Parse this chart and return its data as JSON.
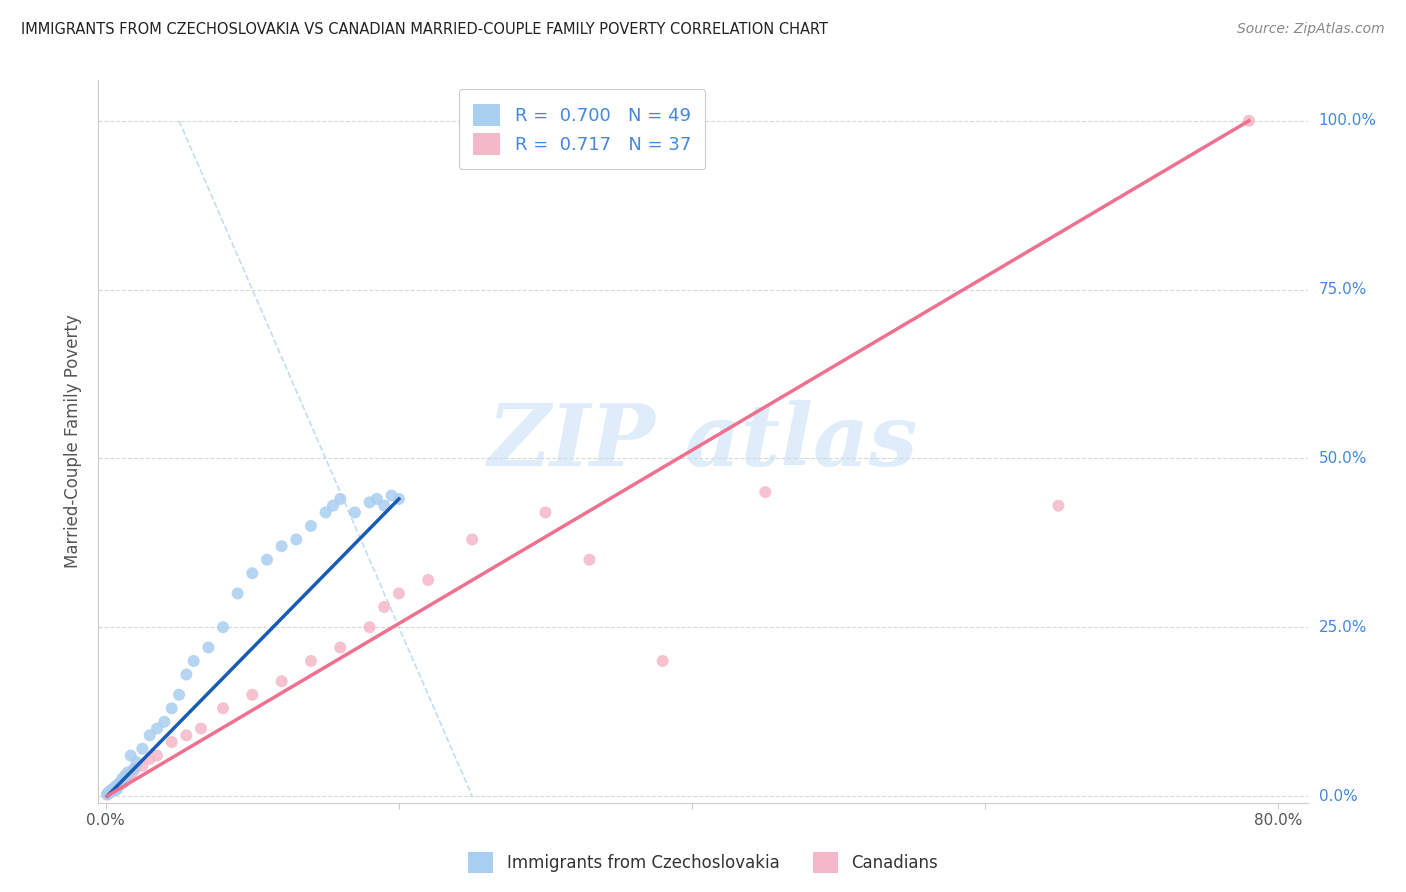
{
  "title": "IMMIGRANTS FROM CZECHOSLOVAKIA VS CANADIAN MARRIED-COUPLE FAMILY POVERTY CORRELATION CHART",
  "source": "Source: ZipAtlas.com",
  "ylabel": "Married-Couple Family Poverty",
  "x_ticks": [
    0.0,
    20.0,
    40.0,
    60.0,
    80.0
  ],
  "y_ticks": [
    0.0,
    25.0,
    50.0,
    75.0,
    100.0
  ],
  "x_tick_labels": [
    "0.0%",
    "",
    "",
    "",
    "80.0%"
  ],
  "y_tick_labels": [
    "0.0%",
    "25.0%",
    "50.0%",
    "75.0%",
    "100.0%"
  ],
  "xlim": [
    -0.5,
    82
  ],
  "ylim": [
    -1,
    106
  ],
  "R_blue": 0.7,
  "N_blue": 49,
  "R_pink": 0.717,
  "N_pink": 37,
  "blue_color": "#a8cef0",
  "pink_color": "#f5b8c8",
  "blue_line_color": "#1a5cb5",
  "pink_line_color": "#f07090",
  "blue_scatter_x": [
    0.1,
    0.15,
    0.2,
    0.25,
    0.3,
    0.35,
    0.4,
    0.45,
    0.5,
    0.55,
    0.6,
    0.65,
    0.7,
    0.75,
    0.8,
    0.9,
    1.0,
    1.1,
    1.2,
    1.3,
    1.5,
    1.7,
    1.9,
    2.1,
    2.5,
    3.0,
    3.5,
    4.0,
    4.5,
    5.0,
    5.5,
    6.0,
    7.0,
    8.0,
    9.0,
    10.0,
    11.0,
    12.0,
    13.0,
    14.0,
    15.0,
    15.5,
    16.0,
    17.0,
    18.0,
    18.5,
    19.0,
    19.5,
    20.0
  ],
  "blue_scatter_y": [
    0.3,
    0.4,
    0.5,
    0.6,
    0.7,
    0.8,
    0.9,
    1.0,
    1.0,
    0.8,
    1.2,
    0.9,
    1.5,
    1.0,
    1.3,
    1.8,
    2.0,
    2.5,
    2.0,
    3.0,
    3.5,
    6.0,
    4.0,
    5.0,
    7.0,
    9.0,
    10.0,
    11.0,
    13.0,
    15.0,
    18.0,
    20.0,
    22.0,
    25.0,
    30.0,
    33.0,
    35.0,
    37.0,
    38.0,
    40.0,
    42.0,
    43.0,
    44.0,
    42.0,
    43.5,
    44.0,
    43.0,
    44.5,
    44.0
  ],
  "pink_scatter_x": [
    0.1,
    0.2,
    0.3,
    0.4,
    0.5,
    0.6,
    0.7,
    0.8,
    0.9,
    1.0,
    1.2,
    1.4,
    1.6,
    1.8,
    2.0,
    2.5,
    3.0,
    3.5,
    4.5,
    5.5,
    6.5,
    8.0,
    10.0,
    12.0,
    14.0,
    16.0,
    18.0,
    19.0,
    20.0,
    22.0,
    25.0,
    30.0,
    33.0,
    38.0,
    45.0,
    65.0,
    78.0
  ],
  "pink_scatter_y": [
    0.2,
    0.4,
    0.5,
    0.7,
    0.8,
    1.0,
    1.2,
    1.4,
    1.5,
    1.8,
    2.0,
    2.5,
    2.8,
    3.5,
    4.0,
    4.5,
    5.5,
    6.0,
    8.0,
    9.0,
    10.0,
    13.0,
    15.0,
    17.0,
    20.0,
    22.0,
    25.0,
    28.0,
    30.0,
    32.0,
    38.0,
    42.0,
    35.0,
    20.0,
    45.0,
    43.0,
    100.0
  ],
  "dashed_line_x": [
    5.0,
    25.0
  ],
  "dashed_line_y": [
    100.0,
    0.0
  ],
  "watermark_text": "ZIP atlas",
  "background_color": "#ffffff",
  "grid_color": "#d8d8d8",
  "blue_line_x": [
    0.1,
    20.0
  ],
  "pink_line_x": [
    0.1,
    78.0
  ]
}
